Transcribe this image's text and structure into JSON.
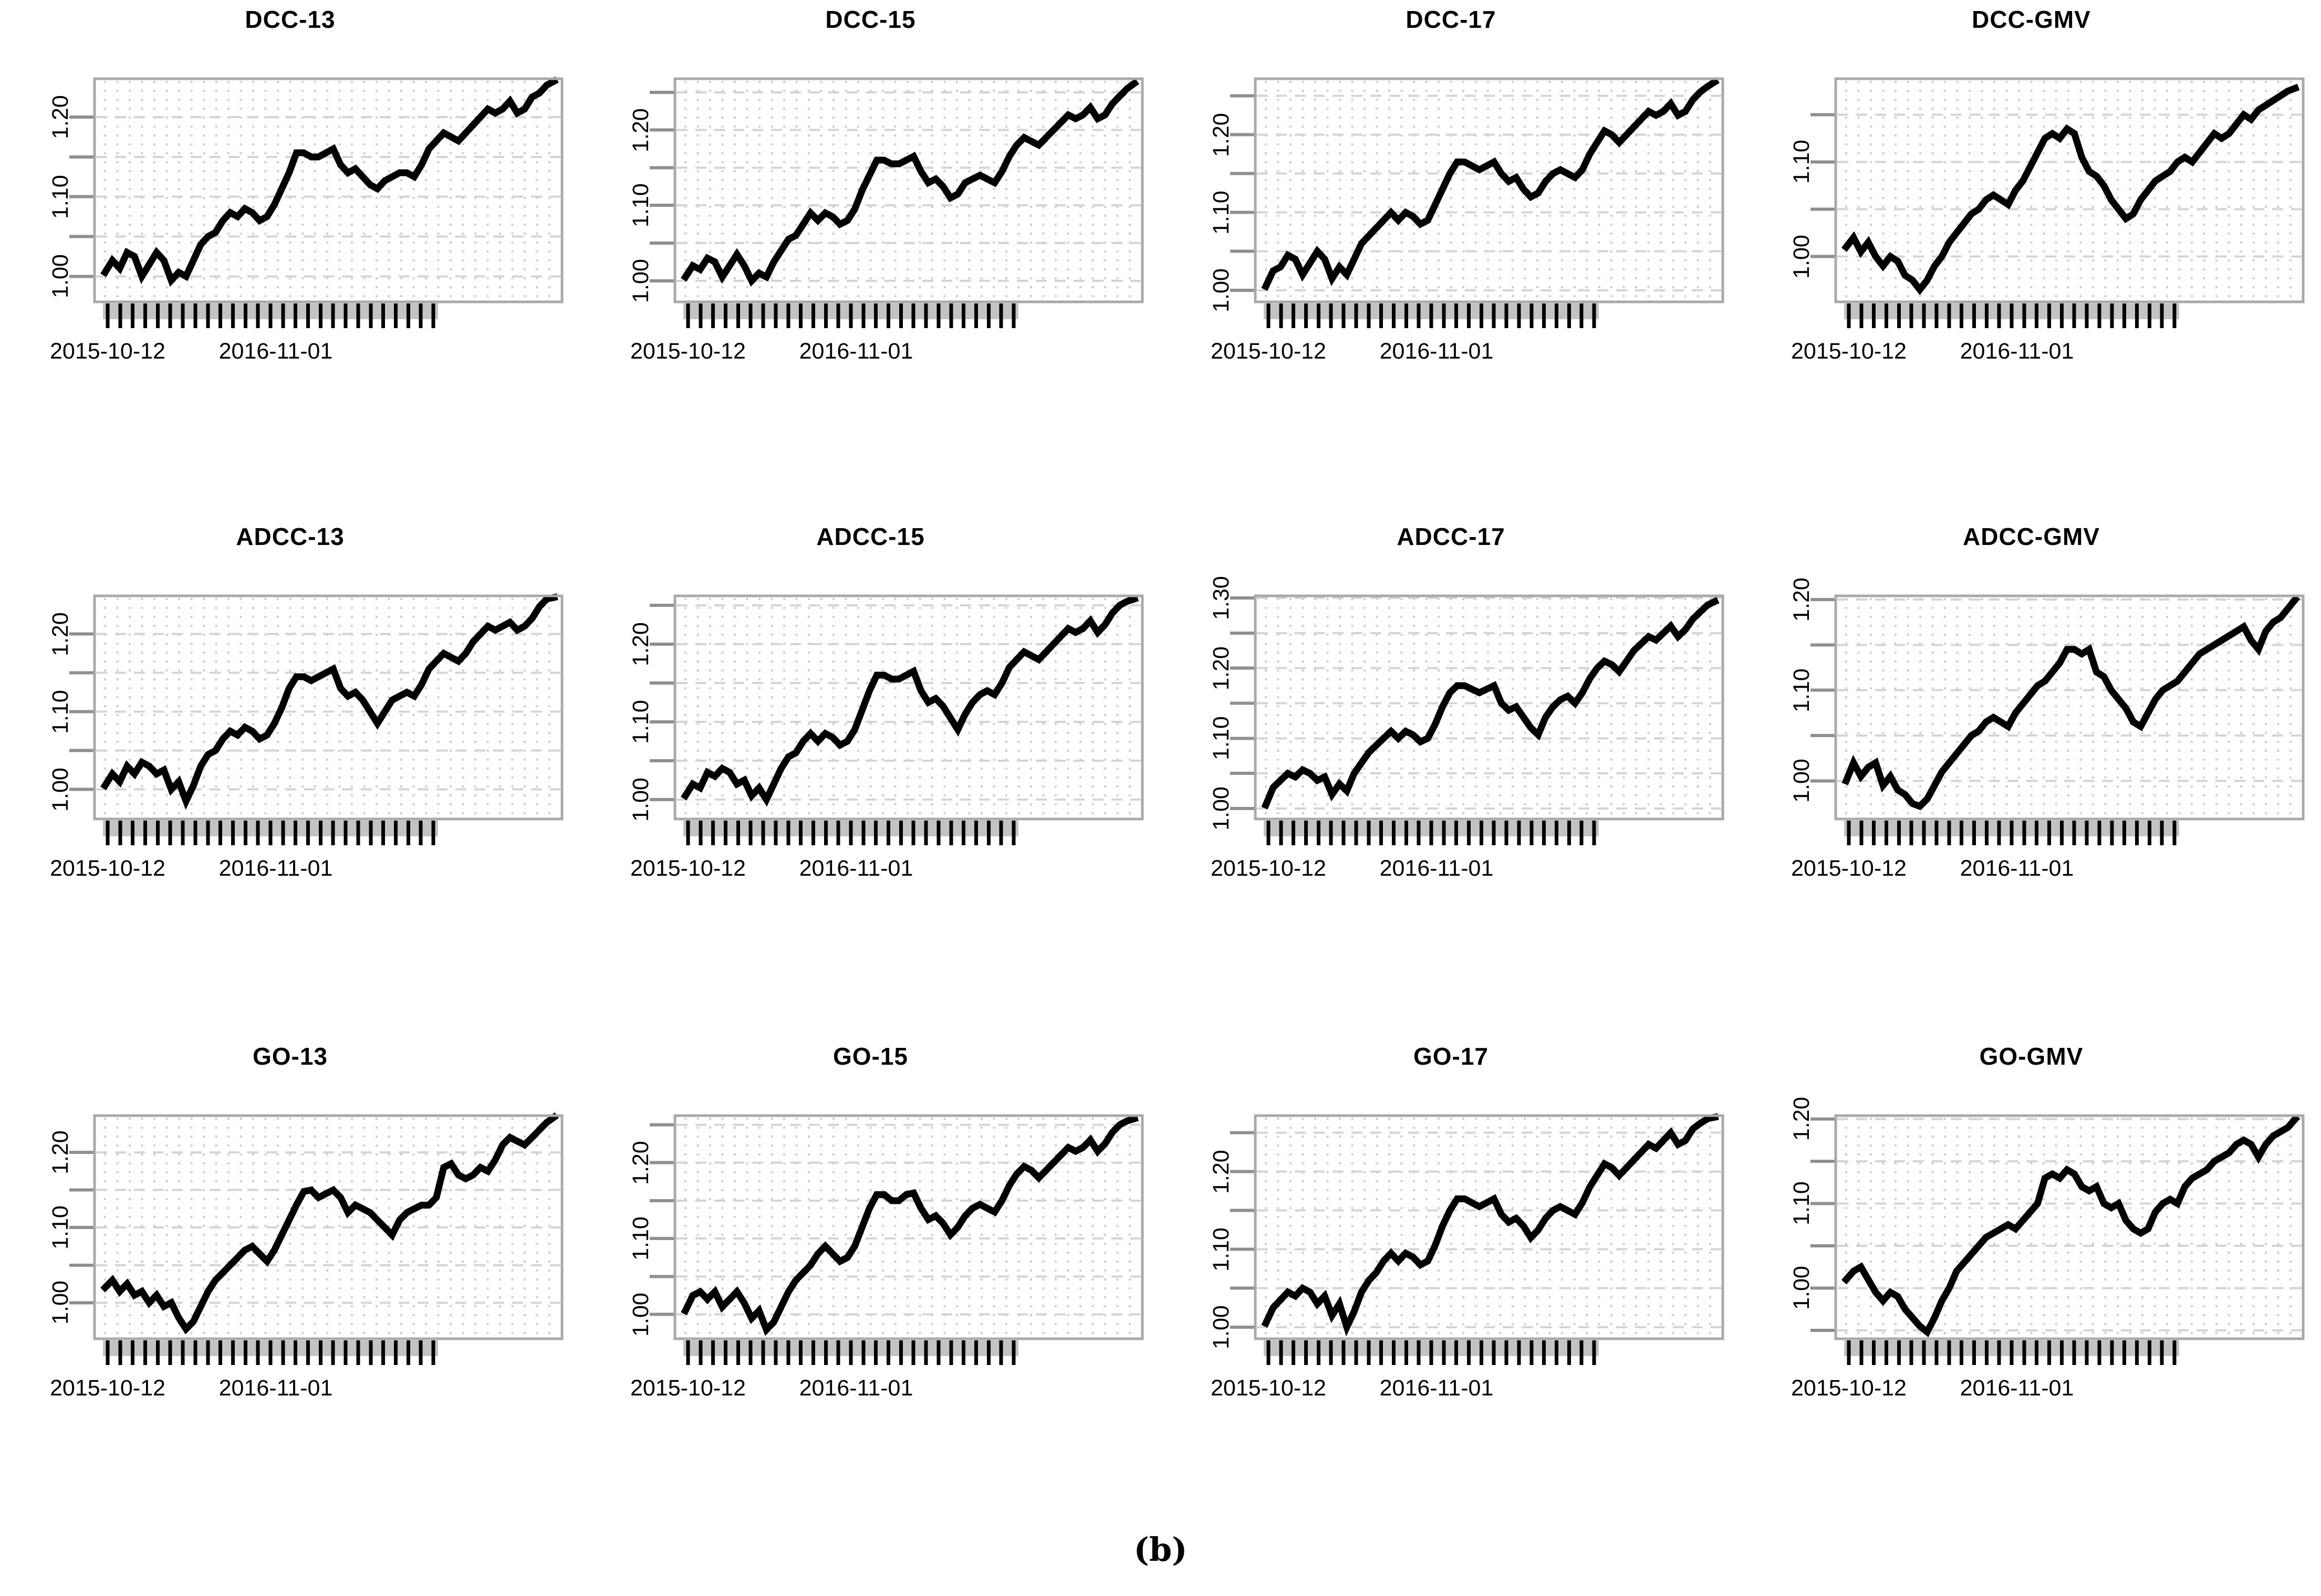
{
  "figure": {
    "caption": "(b)",
    "grid_rows": 3,
    "grid_cols": 4
  },
  "colors": {
    "line": "#000000",
    "box_border": "#a9a9a9",
    "axis_tick": "#8f8f8f",
    "grid_dots": "#cfcfcf",
    "grid_dash": "#d4d4d4",
    "comb_band": "#c3c3c3",
    "background": "#ffffff"
  },
  "chart_data": [
    {
      "type": "line",
      "title": "DCC-13",
      "x_tick_labels": [
        "2015-10-12",
        "2016-11-01"
      ],
      "ylim": [
        0.968,
        1.248
      ],
      "ytick_step": 0.05,
      "ytick_labels": [
        "1.00",
        "1.10",
        "1.20"
      ],
      "grid": true,
      "values": [
        1.005,
        1.02,
        1.01,
        1.03,
        1.025,
        1.0,
        1.015,
        1.03,
        1.02,
        0.995,
        1.005,
        1.0,
        1.02,
        1.04,
        1.05,
        1.055,
        1.07,
        1.08,
        1.075,
        1.085,
        1.08,
        1.07,
        1.075,
        1.09,
        1.11,
        1.13,
        1.155,
        1.155,
        1.15,
        1.15,
        1.155,
        1.16,
        1.14,
        1.13,
        1.135,
        1.125,
        1.115,
        1.11,
        1.12,
        1.125,
        1.13,
        1.13,
        1.125,
        1.14,
        1.16,
        1.17,
        1.18,
        1.175,
        1.17,
        1.18,
        1.19,
        1.2,
        1.21,
        1.205,
        1.21,
        1.22,
        1.205,
        1.21,
        1.225,
        1.23,
        1.24,
        1.245
      ]
    },
    {
      "type": "line",
      "title": "DCC-15",
      "x_tick_labels": [
        "2015-10-12",
        "2016-11-01"
      ],
      "ylim": [
        0.972,
        1.268
      ],
      "ytick_step": 0.05,
      "ytick_labels": [
        "1.00",
        "1.10",
        "1.20"
      ],
      "grid": true,
      "values": [
        1.005,
        1.02,
        1.015,
        1.03,
        1.025,
        1.005,
        1.02,
        1.035,
        1.02,
        1.0,
        1.01,
        1.005,
        1.025,
        1.04,
        1.055,
        1.06,
        1.075,
        1.09,
        1.08,
        1.09,
        1.085,
        1.075,
        1.08,
        1.095,
        1.12,
        1.14,
        1.16,
        1.16,
        1.155,
        1.155,
        1.16,
        1.165,
        1.145,
        1.13,
        1.135,
        1.125,
        1.11,
        1.115,
        1.13,
        1.135,
        1.14,
        1.135,
        1.13,
        1.145,
        1.165,
        1.18,
        1.19,
        1.185,
        1.18,
        1.19,
        1.2,
        1.21,
        1.22,
        1.215,
        1.22,
        1.23,
        1.215,
        1.22,
        1.235,
        1.245,
        1.255,
        1.262
      ]
    },
    {
      "type": "line",
      "title": "DCC-17",
      "x_tick_labels": [
        "2015-10-12",
        "2016-11-01"
      ],
      "ylim": [
        0.985,
        1.272
      ],
      "ytick_step": 0.05,
      "ytick_labels": [
        "1.00",
        "1.10",
        "1.20"
      ],
      "grid": true,
      "values": [
        1.005,
        1.025,
        1.03,
        1.045,
        1.04,
        1.02,
        1.035,
        1.05,
        1.04,
        1.015,
        1.03,
        1.02,
        1.04,
        1.06,
        1.07,
        1.08,
        1.09,
        1.1,
        1.09,
        1.1,
        1.095,
        1.085,
        1.09,
        1.11,
        1.13,
        1.15,
        1.165,
        1.165,
        1.16,
        1.155,
        1.16,
        1.165,
        1.15,
        1.14,
        1.145,
        1.13,
        1.12,
        1.125,
        1.14,
        1.15,
        1.155,
        1.15,
        1.145,
        1.155,
        1.175,
        1.19,
        1.205,
        1.2,
        1.19,
        1.2,
        1.21,
        1.22,
        1.23,
        1.225,
        1.23,
        1.24,
        1.225,
        1.23,
        1.245,
        1.255,
        1.262,
        1.268
      ]
    },
    {
      "type": "line",
      "title": "DCC-GMV",
      "x_tick_labels": [
        "2015-10-12",
        "2016-11-01"
      ],
      "ylim": [
        0.952,
        1.188
      ],
      "ytick_step": 0.05,
      "ytick_labels": [
        "1.00",
        "1.10"
      ],
      "grid": true,
      "values": [
        1.01,
        1.02,
        1.005,
        1.015,
        1.0,
        0.99,
        1.0,
        0.995,
        0.98,
        0.975,
        0.965,
        0.975,
        0.99,
        1.0,
        1.015,
        1.025,
        1.035,
        1.045,
        1.05,
        1.06,
        1.065,
        1.06,
        1.055,
        1.07,
        1.08,
        1.095,
        1.11,
        1.125,
        1.13,
        1.125,
        1.135,
        1.13,
        1.105,
        1.09,
        1.085,
        1.075,
        1.06,
        1.05,
        1.04,
        1.045,
        1.06,
        1.07,
        1.08,
        1.085,
        1.09,
        1.1,
        1.105,
        1.1,
        1.11,
        1.12,
        1.13,
        1.125,
        1.13,
        1.14,
        1.15,
        1.145,
        1.155,
        1.16,
        1.165,
        1.17,
        1.175,
        1.178
      ]
    },
    {
      "type": "line",
      "title": "ADCC-13",
      "x_tick_labels": [
        "2015-10-12",
        "2016-11-01"
      ],
      "ylim": [
        0.962,
        1.249
      ],
      "ytick_step": 0.05,
      "ytick_labels": [
        "1.00",
        "1.10",
        "1.20"
      ],
      "grid": true,
      "values": [
        1.005,
        1.02,
        1.01,
        1.03,
        1.02,
        1.035,
        1.03,
        1.02,
        1.025,
        1.0,
        1.01,
        0.985,
        1.005,
        1.03,
        1.045,
        1.05,
        1.065,
        1.075,
        1.07,
        1.08,
        1.075,
        1.065,
        1.07,
        1.085,
        1.105,
        1.13,
        1.145,
        1.145,
        1.14,
        1.145,
        1.15,
        1.155,
        1.13,
        1.12,
        1.125,
        1.115,
        1.1,
        1.085,
        1.1,
        1.115,
        1.12,
        1.125,
        1.12,
        1.135,
        1.155,
        1.165,
        1.175,
        1.17,
        1.165,
        1.175,
        1.19,
        1.2,
        1.21,
        1.205,
        1.21,
        1.215,
        1.205,
        1.21,
        1.22,
        1.235,
        1.245,
        1.247
      ]
    },
    {
      "type": "line",
      "title": "ADCC-15",
      "x_tick_labels": [
        "2015-10-12",
        "2016-11-01"
      ],
      "ylim": [
        0.975,
        1.262
      ],
      "ytick_step": 0.05,
      "ytick_labels": [
        "1.00",
        "1.10",
        "1.20"
      ],
      "grid": true,
      "values": [
        1.005,
        1.02,
        1.015,
        1.035,
        1.03,
        1.04,
        1.035,
        1.02,
        1.025,
        1.005,
        1.015,
        1.0,
        1.02,
        1.04,
        1.055,
        1.06,
        1.075,
        1.085,
        1.075,
        1.085,
        1.08,
        1.07,
        1.075,
        1.09,
        1.115,
        1.14,
        1.16,
        1.16,
        1.155,
        1.155,
        1.16,
        1.165,
        1.14,
        1.125,
        1.13,
        1.12,
        1.105,
        1.09,
        1.11,
        1.125,
        1.135,
        1.14,
        1.135,
        1.15,
        1.17,
        1.18,
        1.19,
        1.185,
        1.18,
        1.19,
        1.2,
        1.21,
        1.22,
        1.215,
        1.22,
        1.23,
        1.215,
        1.225,
        1.24,
        1.25,
        1.255,
        1.258
      ]
    },
    {
      "type": "line",
      "title": "ADCC-17",
      "x_tick_labels": [
        "2015-10-12",
        "2016-11-01"
      ],
      "ylim": [
        0.985,
        1.303
      ],
      "ytick_step": 0.05,
      "ytick_labels": [
        "1.00",
        "1.10",
        "1.20",
        "1.30"
      ],
      "grid": true,
      "values": [
        1.005,
        1.03,
        1.04,
        1.05,
        1.045,
        1.055,
        1.05,
        1.04,
        1.045,
        1.02,
        1.035,
        1.025,
        1.05,
        1.065,
        1.08,
        1.09,
        1.1,
        1.11,
        1.1,
        1.11,
        1.105,
        1.095,
        1.1,
        1.12,
        1.145,
        1.165,
        1.175,
        1.175,
        1.17,
        1.165,
        1.17,
        1.175,
        1.15,
        1.14,
        1.145,
        1.13,
        1.115,
        1.105,
        1.13,
        1.145,
        1.155,
        1.16,
        1.15,
        1.165,
        1.185,
        1.2,
        1.21,
        1.205,
        1.195,
        1.21,
        1.225,
        1.235,
        1.245,
        1.24,
        1.25,
        1.26,
        1.245,
        1.255,
        1.27,
        1.28,
        1.29,
        1.295
      ]
    },
    {
      "type": "line",
      "title": "ADCC-GMV",
      "x_tick_labels": [
        "2015-10-12",
        "2016-11-01"
      ],
      "ylim": [
        0.958,
        1.204
      ],
      "ytick_step": 0.05,
      "ytick_labels": [
        "1.00",
        "1.10",
        "1.20"
      ],
      "grid": true,
      "values": [
        1.0,
        1.02,
        1.005,
        1.015,
        1.02,
        0.995,
        1.005,
        0.99,
        0.985,
        0.975,
        0.972,
        0.98,
        0.995,
        1.01,
        1.02,
        1.03,
        1.04,
        1.05,
        1.055,
        1.065,
        1.07,
        1.065,
        1.06,
        1.075,
        1.085,
        1.095,
        1.105,
        1.11,
        1.12,
        1.13,
        1.145,
        1.145,
        1.14,
        1.145,
        1.12,
        1.115,
        1.1,
        1.09,
        1.08,
        1.065,
        1.06,
        1.075,
        1.09,
        1.1,
        1.105,
        1.11,
        1.12,
        1.13,
        1.14,
        1.145,
        1.15,
        1.155,
        1.16,
        1.165,
        1.17,
        1.155,
        1.145,
        1.165,
        1.175,
        1.18,
        1.19,
        1.2
      ]
    },
    {
      "type": "line",
      "title": "GO-13",
      "x_tick_labels": [
        "2015-10-12",
        "2016-11-01"
      ],
      "ylim": [
        0.952,
        1.249
      ],
      "ytick_step": 0.05,
      "ytick_labels": [
        "1.00",
        "1.10",
        "1.20"
      ],
      "grid": true,
      "values": [
        1.02,
        1.03,
        1.015,
        1.025,
        1.01,
        1.015,
        1.0,
        1.01,
        0.995,
        1.0,
        0.98,
        0.965,
        0.975,
        0.995,
        1.015,
        1.03,
        1.04,
        1.05,
        1.06,
        1.07,
        1.075,
        1.065,
        1.055,
        1.07,
        1.09,
        1.11,
        1.13,
        1.148,
        1.15,
        1.14,
        1.145,
        1.15,
        1.14,
        1.12,
        1.13,
        1.125,
        1.12,
        1.11,
        1.1,
        1.09,
        1.11,
        1.12,
        1.125,
        1.13,
        1.13,
        1.14,
        1.18,
        1.185,
        1.17,
        1.165,
        1.17,
        1.18,
        1.175,
        1.19,
        1.21,
        1.22,
        1.215,
        1.21,
        1.22,
        1.23,
        1.24,
        1.247
      ]
    },
    {
      "type": "line",
      "title": "GO-15",
      "x_tick_labels": [
        "2015-10-12",
        "2016-11-01"
      ],
      "ylim": [
        0.968,
        1.262
      ],
      "ytick_step": 0.05,
      "ytick_labels": [
        "1.00",
        "1.10",
        "1.20"
      ],
      "grid": true,
      "values": [
        1.005,
        1.025,
        1.03,
        1.02,
        1.03,
        1.01,
        1.02,
        1.03,
        1.015,
        0.995,
        1.005,
        0.98,
        0.99,
        1.01,
        1.03,
        1.045,
        1.055,
        1.065,
        1.08,
        1.09,
        1.08,
        1.07,
        1.075,
        1.09,
        1.115,
        1.14,
        1.158,
        1.158,
        1.15,
        1.15,
        1.158,
        1.16,
        1.14,
        1.125,
        1.13,
        1.12,
        1.105,
        1.115,
        1.13,
        1.14,
        1.145,
        1.14,
        1.135,
        1.15,
        1.17,
        1.185,
        1.195,
        1.19,
        1.18,
        1.19,
        1.2,
        1.21,
        1.22,
        1.215,
        1.22,
        1.23,
        1.215,
        1.225,
        1.24,
        1.25,
        1.255,
        1.258
      ]
    },
    {
      "type": "line",
      "title": "GO-17",
      "x_tick_labels": [
        "2015-10-12",
        "2016-11-01"
      ],
      "ylim": [
        0.985,
        1.272
      ],
      "ytick_step": 0.05,
      "ytick_labels": [
        "1.00",
        "1.10",
        "1.20"
      ],
      "grid": true,
      "values": [
        1.005,
        1.025,
        1.035,
        1.045,
        1.04,
        1.05,
        1.045,
        1.03,
        1.04,
        1.015,
        1.03,
        1.0,
        1.02,
        1.045,
        1.06,
        1.07,
        1.085,
        1.095,
        1.085,
        1.095,
        1.09,
        1.08,
        1.085,
        1.105,
        1.13,
        1.15,
        1.165,
        1.165,
        1.16,
        1.155,
        1.16,
        1.165,
        1.145,
        1.135,
        1.14,
        1.13,
        1.115,
        1.125,
        1.14,
        1.15,
        1.155,
        1.15,
        1.145,
        1.16,
        1.18,
        1.195,
        1.21,
        1.205,
        1.195,
        1.205,
        1.215,
        1.225,
        1.235,
        1.23,
        1.24,
        1.25,
        1.235,
        1.24,
        1.255,
        1.262,
        1.268,
        1.27
      ]
    },
    {
      "type": "line",
      "title": "GO-GMV",
      "x_tick_labels": [
        "2015-10-12",
        "2016-11-01"
      ],
      "ylim": [
        0.94,
        1.204
      ],
      "ytick_step": 0.05,
      "ytick_labels": [
        "1.00",
        "1.10",
        "1.20"
      ],
      "grid": true,
      "values": [
        1.01,
        1.02,
        1.025,
        1.01,
        0.995,
        0.985,
        0.995,
        0.99,
        0.975,
        0.965,
        0.955,
        0.948,
        0.965,
        0.985,
        1.0,
        1.02,
        1.03,
        1.04,
        1.05,
        1.06,
        1.065,
        1.07,
        1.075,
        1.07,
        1.08,
        1.09,
        1.1,
        1.13,
        1.135,
        1.13,
        1.14,
        1.135,
        1.12,
        1.115,
        1.12,
        1.1,
        1.095,
        1.1,
        1.08,
        1.07,
        1.065,
        1.07,
        1.09,
        1.1,
        1.105,
        1.1,
        1.12,
        1.13,
        1.135,
        1.14,
        1.15,
        1.155,
        1.16,
        1.17,
        1.175,
        1.17,
        1.155,
        1.17,
        1.18,
        1.185,
        1.19,
        1.2
      ]
    }
  ]
}
